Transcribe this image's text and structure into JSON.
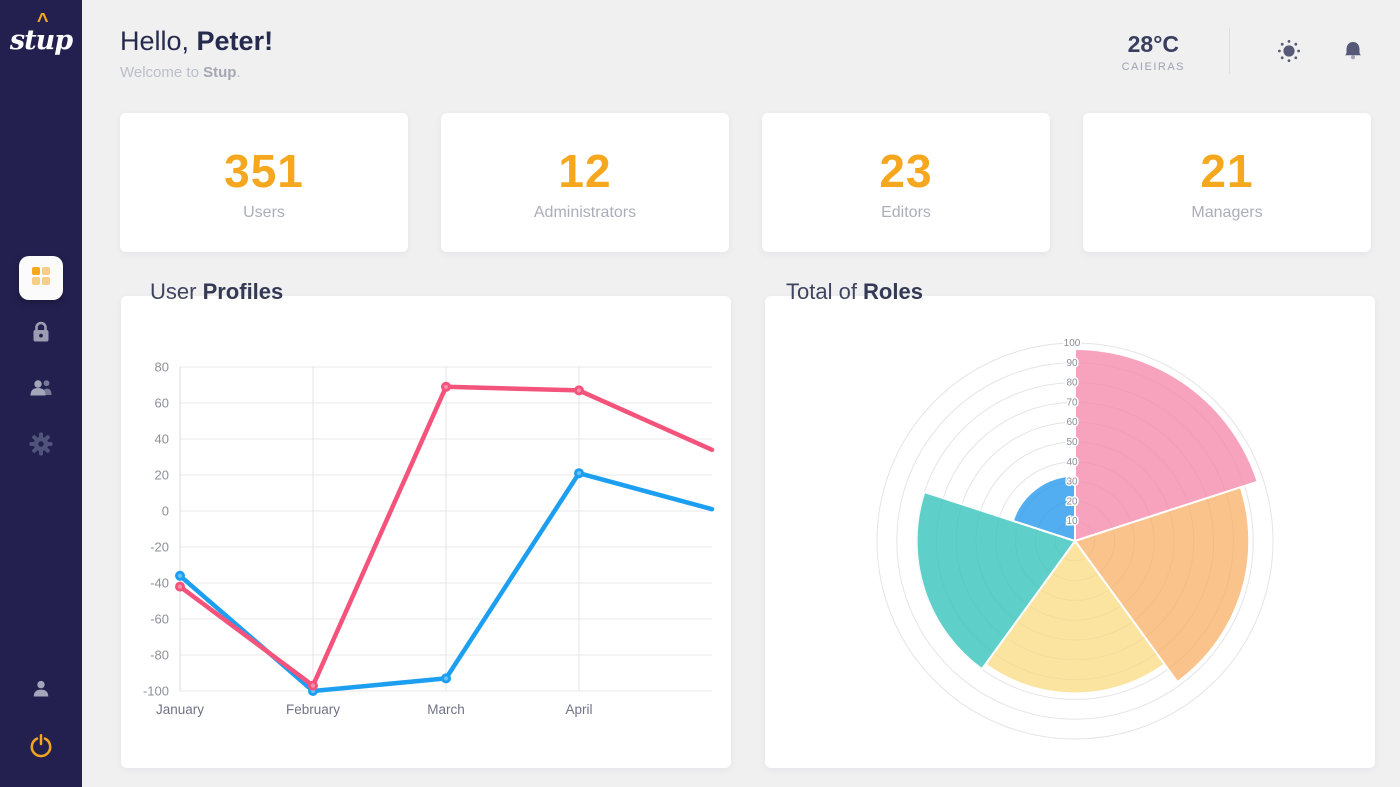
{
  "theme": {
    "sidebar_bg": "#232050",
    "accent_orange": "#F5A71E",
    "navy_text": "#262B4E",
    "muted_gray": "#ABAEB9",
    "line_pink": "#F4537B",
    "line_blue": "#1C9FF0"
  },
  "sidebar": {
    "logo_text": "stup",
    "items": [
      {
        "id": "dashboard",
        "icon": "grid-icon",
        "active": true
      },
      {
        "id": "security",
        "icon": "lock-icon",
        "active": false
      },
      {
        "id": "users",
        "icon": "users-icon",
        "active": false
      },
      {
        "id": "settings",
        "icon": "gear-icon",
        "active": false
      }
    ],
    "bottom_items": [
      {
        "id": "profile",
        "icon": "user-icon"
      },
      {
        "id": "logout",
        "icon": "power-icon"
      }
    ]
  },
  "header": {
    "greeting_prefix": "Hello, ",
    "greeting_name": "Peter!",
    "welcome_prefix": "Welcome to ",
    "welcome_brand": "Stup",
    "welcome_suffix": ".",
    "weather": {
      "temperature": "28°C",
      "city": "CAIEIRAS"
    },
    "icons": [
      "sun-icon",
      "bell-icon"
    ]
  },
  "stats": [
    {
      "value": "351",
      "label": "Users"
    },
    {
      "value": "12",
      "label": "Administrators"
    },
    {
      "value": "23",
      "label": "Editors"
    },
    {
      "value": "21",
      "label": "Managers"
    }
  ],
  "sections": {
    "line_chart": {
      "title_regular": "User ",
      "title_bold": "Profiles"
    },
    "polar_chart": {
      "title_regular": "Total of ",
      "title_bold": "Roles"
    }
  },
  "chart_data": [
    {
      "type": "line",
      "title": "User Profiles",
      "x_labels": [
        "January",
        "February",
        "March",
        "April"
      ],
      "y_ticks": [
        80,
        60,
        40,
        20,
        0,
        -20,
        -40,
        -60,
        -80,
        -100
      ],
      "ylim": [
        -100,
        80
      ],
      "grid": true,
      "legend": "none",
      "note": "a fifth unlabeled point is clipped at the right plot edge",
      "series": [
        {
          "name": "pink-series",
          "color": "#F4537B",
          "values": [
            -42,
            -97,
            69,
            67,
            34
          ]
        },
        {
          "name": "blue-series",
          "color": "#1C9FF0",
          "values": [
            -36,
            -100,
            -93,
            21,
            1
          ]
        }
      ]
    },
    {
      "type": "polarArea",
      "title": "Total of Roles",
      "r_ticks": [
        10,
        20,
        30,
        40,
        50,
        60,
        70,
        80,
        90,
        100
      ],
      "rlim": [
        0,
        100
      ],
      "start_angle_deg": 0,
      "slice_angle_deg": 72,
      "slices": [
        {
          "name": "slice-pink",
          "value": 97,
          "color": "#F8A3BD"
        },
        {
          "name": "slice-orange",
          "value": 88,
          "color": "#F9C38B"
        },
        {
          "name": "slice-yellow",
          "value": 77,
          "color": "#FBE3A0"
        },
        {
          "name": "slice-teal",
          "value": 80,
          "color": "#5FD0C9"
        },
        {
          "name": "slice-blue",
          "value": 33,
          "color": "#52AEF0"
        }
      ]
    }
  ]
}
